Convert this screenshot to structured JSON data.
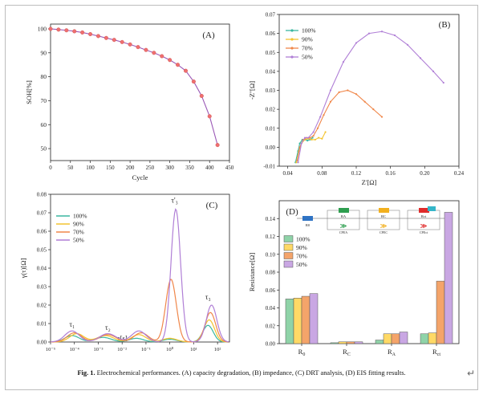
{
  "figure": {
    "caption_label": "Fig. 1.",
    "caption_text": "Electrochemical performances. (A) capacity degradation, (B) impedance, (C) DRT analysis, (D) EIS fitting results.",
    "return_mark": "↵"
  },
  "chart_data": [
    {
      "id": "A",
      "type": "line",
      "panel_label": "(A)",
      "xlabel": "Cycle",
      "ylabel": "SOH[%]",
      "xlim": [
        0,
        450
      ],
      "ylim": [
        45,
        102
      ],
      "xticks": [
        0,
        50,
        100,
        150,
        200,
        250,
        300,
        350,
        400,
        450
      ],
      "yticks": [
        50,
        60,
        70,
        80,
        90,
        100
      ],
      "color": "#9b59b6",
      "marker_color": "#ef6f6f",
      "x": [
        0,
        20,
        40,
        60,
        80,
        100,
        120,
        140,
        160,
        180,
        200,
        220,
        240,
        260,
        280,
        300,
        320,
        340,
        360,
        380,
        400,
        420
      ],
      "y": [
        100,
        99.7,
        99.4,
        99.0,
        98.5,
        97.8,
        97.0,
        96.2,
        95.4,
        94.5,
        93.5,
        92.4,
        91.2,
        90.0,
        88.6,
        87.0,
        85.0,
        82.5,
        78.0,
        72.0,
        63.5,
        51.5
      ]
    },
    {
      "id": "B",
      "type": "line",
      "panel_label": "(B)",
      "xlabel": "Z'[Ω]",
      "ylabel": "-Z''[Ω]",
      "xlim": [
        0.03,
        0.24
      ],
      "ylim": [
        -0.01,
        0.07
      ],
      "xticks": [
        0.04,
        0.08,
        0.12,
        0.16,
        0.2,
        0.24
      ],
      "xtick_labels": [
        "0.04",
        "0.08",
        "0.12",
        "0.16",
        "0.20",
        "0.24"
      ],
      "yticks": [
        -0.01,
        0,
        0.01,
        0.02,
        0.03,
        0.04,
        0.05,
        0.06,
        0.07
      ],
      "ytick_labels": [
        "-0.01",
        "0.00",
        "0.01",
        "0.02",
        "0.03",
        "0.04",
        "0.05",
        "0.06",
        "0.07"
      ],
      "legend_position": "top-left",
      "series": [
        {
          "name": "100%",
          "color": "#3ab7a0",
          "x": [
            0.049,
            0.052,
            0.054,
            0.057,
            0.06,
            0.063,
            0.066,
            0.069
          ],
          "y": [
            -0.008,
            -0.002,
            0.002,
            0.004,
            0.004,
            0.0035,
            0.004,
            0.005
          ]
        },
        {
          "name": "90%",
          "color": "#f4c430",
          "x": [
            0.05,
            0.053,
            0.056,
            0.06,
            0.064,
            0.068,
            0.072,
            0.076,
            0.08,
            0.084
          ],
          "y": [
            -0.008,
            -0.002,
            0.002,
            0.004,
            0.0045,
            0.004,
            0.004,
            0.005,
            0.0045,
            0.008
          ]
        },
        {
          "name": "70%",
          "color": "#f0874a",
          "x": [
            0.051,
            0.054,
            0.058,
            0.062,
            0.066,
            0.07,
            0.075,
            0.082,
            0.09,
            0.1,
            0.11,
            0.12,
            0.13,
            0.14,
            0.15
          ],
          "y": [
            -0.007,
            0.0,
            0.004,
            0.005,
            0.005,
            0.006,
            0.01,
            0.017,
            0.024,
            0.029,
            0.03,
            0.028,
            0.024,
            0.02,
            0.016
          ]
        },
        {
          "name": "50%",
          "color": "#b07fd6",
          "x": [
            0.052,
            0.056,
            0.06,
            0.064,
            0.07,
            0.078,
            0.09,
            0.105,
            0.12,
            0.135,
            0.15,
            0.165,
            0.18,
            0.195,
            0.21,
            0.222
          ],
          "y": [
            -0.008,
            0.002,
            0.005,
            0.005,
            0.008,
            0.016,
            0.03,
            0.045,
            0.055,
            0.06,
            0.061,
            0.059,
            0.054,
            0.047,
            0.04,
            0.034
          ]
        }
      ]
    },
    {
      "id": "C",
      "type": "line",
      "panel_label": "(C)",
      "xlabel": "τ[s]",
      "ylabel": "γ(τ)[Ω]",
      "x_scale": "log",
      "xlim_exp": [
        -5,
        2.5
      ],
      "ylim": [
        0,
        0.08
      ],
      "xtick_exponents": [
        -5,
        -4,
        -3,
        -2,
        -1,
        0,
        1,
        2
      ],
      "xtick_labels": [
        "10⁻⁵",
        "10⁻⁴",
        "10⁻³",
        "10⁻²",
        "10⁻¹",
        "10⁰",
        "10¹",
        "10²"
      ],
      "yticks": [
        0,
        0.01,
        0.02,
        0.03,
        0.04,
        0.05,
        0.06,
        0.07,
        0.08
      ],
      "ytick_labels": [
        "0.00",
        "0.01",
        "0.02",
        "0.03",
        "0.04",
        "0.05",
        "0.06",
        "0.07",
        "0.08"
      ],
      "legend_position": "top-left",
      "annotations": [
        {
          "text": "τ₁",
          "x_exp": -4.1,
          "y": 0.0082
        },
        {
          "text": "τ₂",
          "x_exp": -2.6,
          "y": 0.0065
        },
        {
          "text": "τ'₃",
          "x_exp": 0.2,
          "y": 0.0755
        },
        {
          "text": "τ₃",
          "x_exp": 1.6,
          "y": 0.023
        }
      ],
      "series": [
        {
          "name": "100%",
          "color": "#3ab7a0",
          "peaks": [
            [
              -4.1,
              0.0035,
              0.3
            ],
            [
              -2.8,
              0.0025,
              0.35
            ],
            [
              -1.4,
              0.002,
              0.3
            ],
            [
              0.0,
              0.0015,
              0.3
            ],
            [
              1.6,
              0.009,
              0.22
            ]
          ]
        },
        {
          "name": "90%",
          "color": "#f4c430",
          "peaks": [
            [
              -3.9,
              0.0045,
              0.3
            ],
            [
              -2.7,
              0.0035,
              0.35
            ],
            [
              -1.3,
              0.004,
              0.3
            ],
            [
              0.0,
              0.002,
              0.3
            ],
            [
              1.65,
              0.012,
              0.22
            ]
          ]
        },
        {
          "name": "70%",
          "color": "#f0874a",
          "peaks": [
            [
              -4.0,
              0.005,
              0.3
            ],
            [
              -2.6,
              0.004,
              0.35
            ],
            [
              -1.2,
              0.005,
              0.3
            ],
            [
              0.05,
              0.034,
              0.22
            ],
            [
              1.7,
              0.016,
              0.22
            ]
          ]
        },
        {
          "name": "50%",
          "color": "#b07fd6",
          "peaks": [
            [
              -4.1,
              0.006,
              0.3
            ],
            [
              -2.6,
              0.0045,
              0.35
            ],
            [
              -1.3,
              0.006,
              0.3
            ],
            [
              0.25,
              0.072,
              0.2
            ],
            [
              1.75,
              0.02,
              0.22
            ]
          ]
        }
      ]
    },
    {
      "id": "D",
      "type": "bar",
      "panel_label": "(D)",
      "ylabel": "Resistance[Ω]",
      "ylim": [
        0,
        0.16
      ],
      "yticks": [
        0,
        0.02,
        0.04,
        0.06,
        0.08,
        0.1,
        0.12,
        0.14
      ],
      "ytick_labels": [
        "0.00",
        "0.02",
        "0.04",
        "0.06",
        "0.08",
        "0.10",
        "0.12",
        "0.14"
      ],
      "categories": [
        "R₀",
        "R꜀",
        "Rₐ",
        "R꜀ₜ"
      ],
      "category_labels": [
        "R0",
        "RC",
        "RA",
        "Rct"
      ],
      "legend_position": "center-left",
      "series": [
        {
          "name": "100%",
          "color": "#8fd3a8",
          "values": [
            0.05,
            0.001,
            0.004,
            0.011
          ]
        },
        {
          "name": "90%",
          "color": "#ffd966",
          "values": [
            0.051,
            0.002,
            0.011,
            0.012
          ]
        },
        {
          "name": "70%",
          "color": "#f4a46a",
          "values": [
            0.053,
            0.002,
            0.011,
            0.07
          ]
        },
        {
          "name": "50%",
          "color": "#c9a7e3",
          "values": [
            0.056,
            0.002,
            0.013,
            0.147
          ]
        }
      ],
      "circuit_labels": {
        "r0": "R0",
        "ra": "RA",
        "rc": "RC",
        "rct": "Rct",
        "cpea": "CPEA",
        "cpec": "CPEC",
        "cpect": "CPEct"
      }
    }
  ]
}
